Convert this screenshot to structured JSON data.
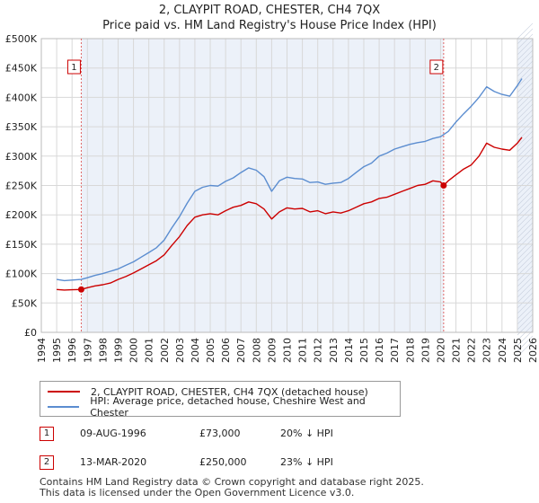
{
  "chart_data": {
    "type": "line",
    "title": "2, CLAYPIT ROAD, CHESTER, CH4 7QX",
    "subtitle": "Price paid vs. HM Land Registry's House Price Index (HPI)",
    "xlabel": "",
    "ylabel": "",
    "xlim": [
      1994,
      2026
    ],
    "ylim": [
      0,
      500000
    ],
    "y_ticks": [
      0,
      50000,
      100000,
      150000,
      200000,
      250000,
      300000,
      350000,
      400000,
      450000,
      500000
    ],
    "y_tick_labels": [
      "£0",
      "£50K",
      "£100K",
      "£150K",
      "£200K",
      "£250K",
      "£300K",
      "£350K",
      "£400K",
      "£450K",
      "£500K"
    ],
    "x_ticks": [
      1994,
      1995,
      1996,
      1997,
      1998,
      1999,
      2000,
      2001,
      2002,
      2003,
      2004,
      2005,
      2006,
      2007,
      2008,
      2009,
      2010,
      2011,
      2012,
      2013,
      2014,
      2015,
      2016,
      2017,
      2018,
      2019,
      2020,
      2021,
      2022,
      2023,
      2024,
      2025,
      2026
    ],
    "x_tick_labels": [
      "1994",
      "1995",
      "1996",
      "1997",
      "1998",
      "1999",
      "2000",
      "2001",
      "2002",
      "2003",
      "2004",
      "2005",
      "2006",
      "2007",
      "2008",
      "2009",
      "2010",
      "2011",
      "2012",
      "2013",
      "2014",
      "2015",
      "2016",
      "2017",
      "2018",
      "2019",
      "2020",
      "2021",
      "2022",
      "2023",
      "2024",
      "2025",
      "2026"
    ],
    "grid": true,
    "legend_position": "below",
    "shaded_ranges": [
      {
        "from": 1996.6,
        "to": 2020.2
      },
      {
        "from": 2025.0,
        "to": 2026.0
      }
    ],
    "series": [
      {
        "name": "2, CLAYPIT ROAD, CHESTER, CH4 7QX (detached house)",
        "color": "#cc0000",
        "x": [
          1995.0,
          1995.5,
          1996.0,
          1996.6,
          1997.0,
          1997.5,
          1998.0,
          1998.5,
          1999.0,
          1999.5,
          2000.0,
          2000.5,
          2001.0,
          2001.5,
          2002.0,
          2002.5,
          2003.0,
          2003.5,
          2004.0,
          2004.5,
          2005.0,
          2005.5,
          2006.0,
          2006.5,
          2007.0,
          2007.5,
          2008.0,
          2008.5,
          2009.0,
          2009.5,
          2010.0,
          2010.5,
          2011.0,
          2011.5,
          2012.0,
          2012.5,
          2013.0,
          2013.5,
          2014.0,
          2014.5,
          2015.0,
          2015.5,
          2016.0,
          2016.5,
          2017.0,
          2017.5,
          2018.0,
          2018.5,
          2019.0,
          2019.5,
          2020.0,
          2020.2,
          2020.5,
          2021.0,
          2021.5,
          2022.0,
          2022.5,
          2023.0,
          2023.5,
          2024.0,
          2024.5,
          2025.0,
          2025.3
        ],
        "values": [
          73000,
          72000,
          72500,
          73000,
          76000,
          79000,
          81000,
          84000,
          90000,
          95000,
          101000,
          108000,
          115000,
          122000,
          132000,
          148000,
          163000,
          182000,
          196000,
          200000,
          202000,
          200000,
          207000,
          213000,
          216000,
          222000,
          219000,
          210000,
          193000,
          205000,
          212000,
          210000,
          211000,
          205000,
          207000,
          202000,
          205000,
          203000,
          207000,
          213000,
          219000,
          222000,
          228000,
          230000,
          235000,
          240000,
          245000,
          250000,
          252000,
          258000,
          256000,
          250000,
          258000,
          268000,
          278000,
          285000,
          300000,
          322000,
          315000,
          312000,
          310000,
          322000,
          332000
        ]
      },
      {
        "name": "HPI: Average price, detached house, Cheshire West and Chester",
        "color": "#5b8dd0",
        "x": [
          1995.0,
          1995.5,
          1996.0,
          1996.6,
          1997.0,
          1997.5,
          1998.0,
          1998.5,
          1999.0,
          1999.5,
          2000.0,
          2000.5,
          2001.0,
          2001.5,
          2002.0,
          2002.5,
          2003.0,
          2003.5,
          2004.0,
          2004.5,
          2005.0,
          2005.5,
          2006.0,
          2006.5,
          2007.0,
          2007.5,
          2008.0,
          2008.5,
          2009.0,
          2009.5,
          2010.0,
          2010.5,
          2011.0,
          2011.5,
          2012.0,
          2012.5,
          2013.0,
          2013.5,
          2014.0,
          2014.5,
          2015.0,
          2015.5,
          2016.0,
          2016.5,
          2017.0,
          2017.5,
          2018.0,
          2018.5,
          2019.0,
          2019.5,
          2020.0,
          2020.5,
          2021.0,
          2021.5,
          2022.0,
          2022.5,
          2023.0,
          2023.5,
          2024.0,
          2024.5,
          2025.0,
          2025.3
        ],
        "values": [
          90000,
          88000,
          89000,
          90000,
          93000,
          97000,
          100000,
          104000,
          108000,
          114000,
          120000,
          128000,
          136000,
          144000,
          157000,
          178000,
          197000,
          220000,
          240000,
          247000,
          250000,
          249000,
          257000,
          263000,
          272000,
          280000,
          276000,
          265000,
          240000,
          258000,
          264000,
          262000,
          261000,
          255000,
          256000,
          252000,
          254000,
          255000,
          262000,
          272000,
          282000,
          288000,
          300000,
          305000,
          312000,
          316000,
          320000,
          323000,
          325000,
          330000,
          333000,
          342000,
          358000,
          372000,
          385000,
          400000,
          418000,
          410000,
          405000,
          402000,
          420000,
          432000
        ]
      }
    ],
    "sales": [
      {
        "label": "1",
        "x": 1996.6,
        "value": 73000
      },
      {
        "label": "2",
        "x": 2020.2,
        "value": 250000
      }
    ]
  },
  "legend": {
    "items": [
      {
        "label": "2, CLAYPIT ROAD, CHESTER, CH4 7QX (detached house)",
        "color": "#cc0000"
      },
      {
        "label": "HPI: Average price, detached house, Cheshire West and Chester",
        "color": "#5b8dd0"
      }
    ]
  },
  "sales_table": [
    {
      "num": "1",
      "date": "09-AUG-1996",
      "price": "£73,000",
      "delta": "20% ↓ HPI"
    },
    {
      "num": "2",
      "date": "13-MAR-2020",
      "price": "£250,000",
      "delta": "23% ↓ HPI"
    }
  ],
  "footer": {
    "line1": "Contains HM Land Registry data © Crown copyright and database right 2025.",
    "line2": "This data is licensed under the Open Government Licence v3.0."
  }
}
